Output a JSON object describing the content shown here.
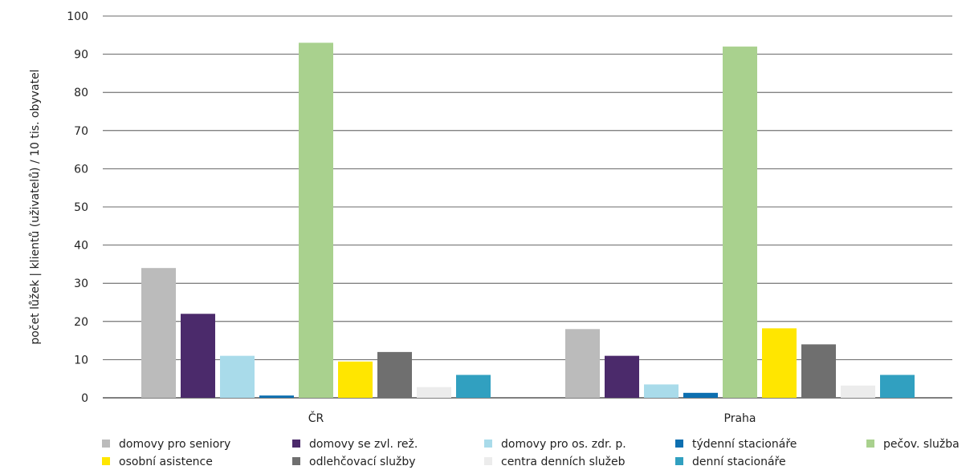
{
  "chart_data": {
    "type": "bar",
    "title": "",
    "xlabel": "",
    "ylabel": "počet lůžek | klientů (uživatelů) / 10 tis. obyvatel",
    "ylim": [
      0,
      100
    ],
    "yticks": [
      0,
      10,
      20,
      30,
      40,
      50,
      60,
      70,
      80,
      90,
      100
    ],
    "grid": true,
    "legend_position": "bottom",
    "categories": [
      "ČR",
      "Praha"
    ],
    "series": [
      {
        "name": "domovy pro seniory",
        "color": "#bbbbbb",
        "values": [
          34,
          18
        ]
      },
      {
        "name": "domovy se zvl. rež.",
        "color": "#4b2a6b",
        "values": [
          22,
          11
        ]
      },
      {
        "name": "domovy pro os. zdr. p.",
        "color": "#a9dbea",
        "values": [
          11,
          3.5
        ]
      },
      {
        "name": "týdenní stacionáře",
        "color": "#0d6fb0",
        "values": [
          0.6,
          1.3
        ]
      },
      {
        "name": "pečov. služba",
        "color": "#a9d18e",
        "values": [
          93,
          92
        ]
      },
      {
        "name": "osobní asistence",
        "color": "#ffe600",
        "values": [
          9.5,
          18.2
        ]
      },
      {
        "name": "odlehčovací služby",
        "color": "#6f6f6f",
        "values": [
          12,
          14
        ]
      },
      {
        "name": "centra denních služeb",
        "color": "#ececec",
        "values": [
          2.8,
          3.2
        ]
      },
      {
        "name": "denní stacionáře",
        "color": "#31a0c0",
        "values": [
          6,
          6
        ]
      }
    ]
  }
}
